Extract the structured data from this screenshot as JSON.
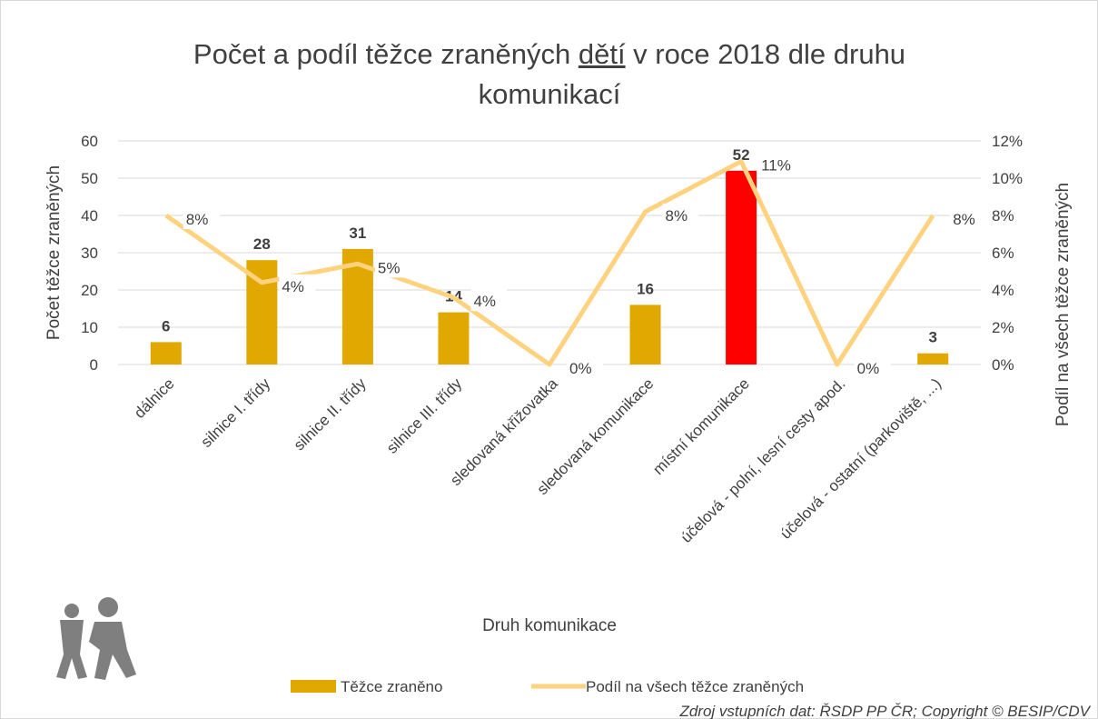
{
  "chart_data": {
    "type": "bar-line",
    "title": {
      "before": "Počet a podíl těžce zraněných ",
      "underlined": "dětí",
      "after": " v roce 2018 dle druhu komunikací"
    },
    "x_label": "Druh komunikace",
    "y_label": "Počet těžce zraněných",
    "y2_label": "Podíl na všech těžce zraněných",
    "source": "Zdroj vstupních dat: ŘSDP PP ČR; Copyright © BESIP/CDV",
    "categories": [
      "dálnice",
      "silnice I. třídy",
      "silnice II. třídy",
      "silnice III. třídy",
      "sledovaná křižovatka",
      "sledovaná komunikace",
      "místní komunikace",
      "účelová - polní, lesní cesty apod.",
      "účelová - ostatní (parkoviště, ...)"
    ],
    "series": [
      {
        "name": "Těžce zraněno",
        "type": "bar",
        "color": "#e0a800",
        "colors": [
          "#e0a800",
          "#e0a800",
          "#e0a800",
          "#e0a800",
          "#e0a800",
          "#e0a800",
          "#ff0000",
          "#e0a800",
          "#e0a800"
        ],
        "values": [
          6,
          28,
          31,
          14,
          0,
          16,
          52,
          0,
          3
        ]
      },
      {
        "name": "Podíl na všech těžce zraněných",
        "type": "line",
        "axis": "y2",
        "color": "#ffd27f",
        "values": [
          8,
          4.4,
          5.4,
          3.6,
          0,
          8.2,
          10.9,
          0,
          8
        ],
        "value_labels": [
          "8%",
          "4%",
          "5%",
          "4%",
          "0%",
          "8%",
          "11%",
          "0%",
          "8%"
        ]
      }
    ],
    "ylim": [
      0,
      60
    ],
    "yticks": [
      0,
      10,
      20,
      30,
      40,
      50,
      60
    ],
    "y2lim": [
      0,
      12
    ],
    "y2ticks": [
      {
        "value": 0,
        "label": "0%"
      },
      {
        "value": 2,
        "label": "2%"
      },
      {
        "value": 4,
        "label": "4%"
      },
      {
        "value": 6,
        "label": "6%"
      },
      {
        "value": 8,
        "label": "8%"
      },
      {
        "value": 10,
        "label": "10%"
      },
      {
        "value": 12,
        "label": "12%"
      }
    ],
    "grid": true
  }
}
